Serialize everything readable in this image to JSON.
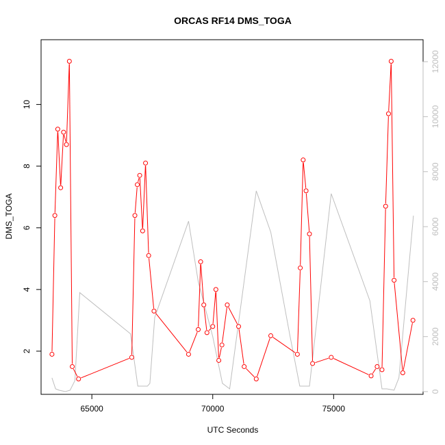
{
  "chart_data": {
    "type": "line",
    "title": "ORCAS RF14 DMS_TOGA",
    "xlabel": "UTC Seconds",
    "ylabel": "DMS_TOGA",
    "xlim": [
      62900,
      78700
    ],
    "ylim": [
      0.6,
      12.1
    ],
    "y2lim": [
      -100,
      12800
    ],
    "x_ticks": [
      65000,
      70000,
      75000
    ],
    "x_tick_labels": [
      "65000",
      "70000",
      "75000"
    ],
    "y_ticks": [
      2,
      4,
      6,
      8,
      10
    ],
    "y_tick_labels": [
      "2",
      "4",
      "6",
      "8",
      "10"
    ],
    "y2_ticks": [
      0,
      2000,
      4000,
      6000,
      8000,
      10000,
      12000
    ],
    "y2_tick_labels": [
      "0",
      "2000",
      "4000",
      "6000",
      "8000",
      "10000",
      "12000"
    ],
    "colors": {
      "dms": "#ff0000",
      "secondary": "#bebebe",
      "axis": "#000000",
      "axis_right": "#bebebe"
    },
    "series": [
      {
        "axis": "left",
        "style": "line-with-open-circles",
        "x": [
          63350,
          63470,
          63590,
          63710,
          63830,
          63950,
          64070,
          64190,
          64450,
          66650,
          66780,
          66880,
          66980,
          67100,
          67220,
          67350,
          67570,
          69000,
          69400,
          69500,
          69630,
          69760,
          70000,
          70130,
          70250,
          70380,
          70600,
          71070,
          71300,
          71800,
          72400,
          73500,
          73620,
          73740,
          73860,
          74000,
          74130,
          74900,
          76550,
          76800,
          77000,
          77150,
          77270,
          77380,
          77500,
          77860,
          78280
        ],
        "values": [
          1.9,
          6.4,
          9.2,
          7.3,
          9.1,
          8.7,
          11.4,
          1.5,
          1.1,
          1.8,
          6.4,
          7.4,
          7.7,
          5.9,
          8.1,
          5.1,
          3.3,
          1.9,
          2.7,
          4.9,
          3.5,
          2.6,
          2.8,
          4.0,
          1.7,
          2.2,
          3.5,
          2.8,
          1.5,
          1.1,
          2.5,
          1.9,
          4.7,
          8.2,
          7.2,
          5.8,
          1.6,
          1.8,
          1.2,
          1.5,
          1.4,
          6.7,
          9.7,
          11.4,
          4.3,
          1.3,
          3.0
        ]
      },
      {
        "axis": "right",
        "style": "line",
        "x": [
          63350,
          63500,
          63650,
          63900,
          64100,
          64300,
          64500,
          66600,
          66900,
          67000,
          67300,
          67400,
          67600,
          69000,
          69400,
          70000,
          70400,
          70700,
          71800,
          72400,
          73200,
          73600,
          73900,
          74000,
          74900,
          76500,
          77000,
          77200,
          77500,
          77700,
          78300
        ],
        "values": [
          500,
          100,
          50,
          0,
          50,
          400,
          3600,
          2100,
          200,
          200,
          200,
          300,
          2700,
          6200,
          4000,
          2000,
          300,
          100,
          7300,
          5800,
          2000,
          200,
          200,
          200,
          7200,
          3300,
          100,
          100,
          50,
          500,
          6400
        ]
      }
    ]
  }
}
